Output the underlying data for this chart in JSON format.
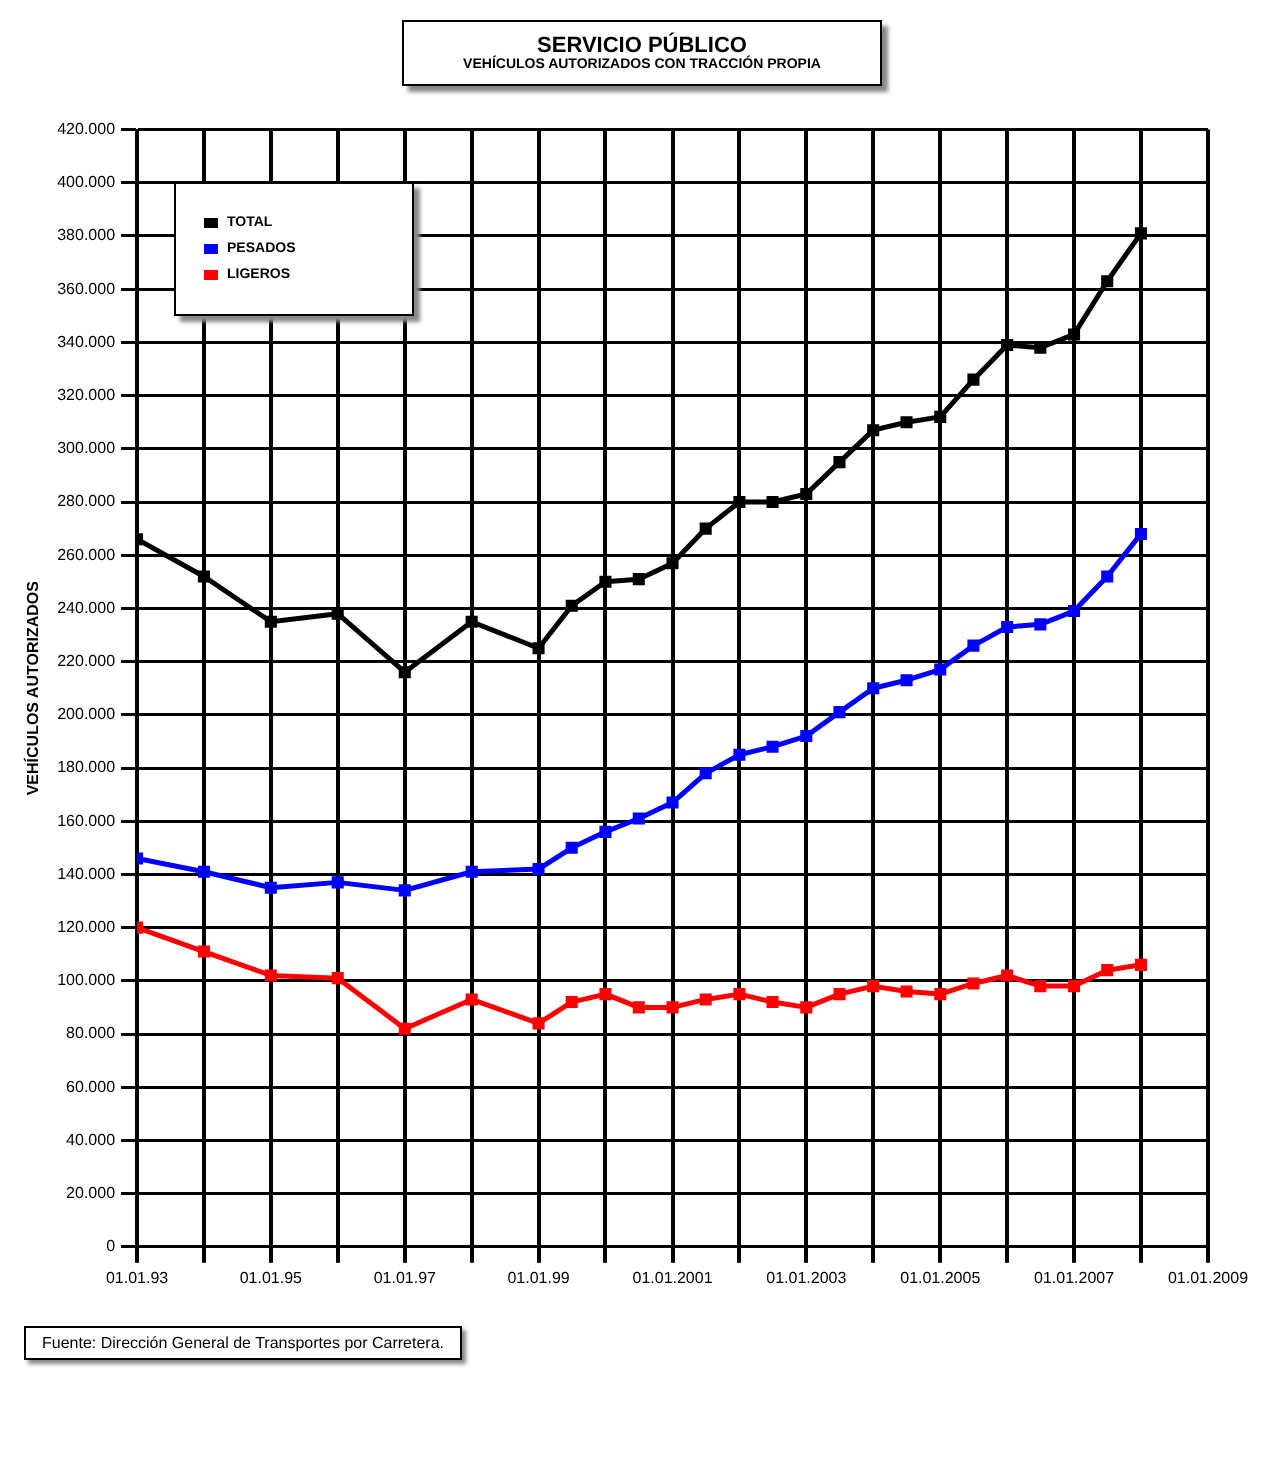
{
  "chart_data": {
    "type": "line",
    "title": "SERVICIO PÚBLICO",
    "subtitle": "VEHÍCULOS AUTORIZADOS CON TRACCIÓN PROPIA",
    "ylabel": "VEHÍCULOS AUTORIZADOS",
    "annotations": [
      "Fuente: Dirección General de Transportes por Carretera."
    ],
    "x": [
      "1993-01-01",
      "1994-01-01",
      "1995-01-01",
      "1996-01-01",
      "1997-01-01",
      "1998-01-01",
      "1999-01-01",
      "1999-07-01",
      "2000-01-01",
      "2000-07-01",
      "2001-01-01",
      "2001-07-01",
      "2002-01-01",
      "2002-07-01",
      "2003-01-01",
      "2003-07-01",
      "2004-01-01",
      "2004-07-01",
      "2005-01-01",
      "2005-07-01",
      "2006-01-01",
      "2006-07-01",
      "2007-01-01",
      "2007-07-01",
      "2008-01-01"
    ],
    "series": [
      {
        "name": "TOTAL",
        "color": "#000000",
        "values": [
          266000,
          252000,
          235000,
          238000,
          216000,
          235000,
          225000,
          241000,
          250000,
          251000,
          257000,
          270000,
          280000,
          280000,
          283000,
          295000,
          307000,
          310000,
          312000,
          326000,
          339000,
          338000,
          343000,
          363000,
          381000
        ]
      },
      {
        "name": "PESADOS",
        "color": "#0000ff",
        "values": [
          146000,
          141000,
          135000,
          137000,
          134000,
          141000,
          142000,
          150000,
          156000,
          161000,
          167000,
          178000,
          185000,
          188000,
          192000,
          201000,
          210000,
          213000,
          217000,
          226000,
          233000,
          234000,
          239000,
          252000,
          268000
        ]
      },
      {
        "name": "LIGEROS",
        "color": "#ff0000",
        "values": [
          120000,
          111000,
          102000,
          101000,
          82000,
          93000,
          84000,
          92000,
          95000,
          90000,
          90000,
          93000,
          95000,
          92000,
          90000,
          95000,
          98000,
          96000,
          95000,
          99000,
          102000,
          98000,
          98000,
          104000,
          106000
        ]
      }
    ],
    "xlim": [
      "1993-01-01",
      "2009-01-01"
    ],
    "xticks": [
      {
        "value": "1993-01-01",
        "label": "01.01.93"
      },
      {
        "value": "1994-01-01",
        "label": null
      },
      {
        "value": "1995-01-01",
        "label": "01.01.95"
      },
      {
        "value": "1996-01-01",
        "label": null
      },
      {
        "value": "1997-01-01",
        "label": "01.01.97"
      },
      {
        "value": "1998-01-01",
        "label": null
      },
      {
        "value": "1999-01-01",
        "label": "01.01.99"
      },
      {
        "value": "2000-01-01",
        "label": null
      },
      {
        "value": "2001-01-01",
        "label": "01.01.2001"
      },
      {
        "value": "2002-01-01",
        "label": null
      },
      {
        "value": "2003-01-01",
        "label": "01.01.2003"
      },
      {
        "value": "2004-01-01",
        "label": null
      },
      {
        "value": "2005-01-01",
        "label": "01.01.2005"
      },
      {
        "value": "2006-01-01",
        "label": null
      },
      {
        "value": "2007-01-01",
        "label": "01.01.2007"
      },
      {
        "value": "2008-01-01",
        "label": null
      },
      {
        "value": "2009-01-01",
        "label": "01.01.2009"
      }
    ],
    "ylim": [
      0,
      420000
    ],
    "yticks": [
      {
        "value": 0,
        "label": "0"
      },
      {
        "value": 20000,
        "label": "20.000"
      },
      {
        "value": 40000,
        "label": "40.000"
      },
      {
        "value": 60000,
        "label": "60.000"
      },
      {
        "value": 80000,
        "label": "80.000"
      },
      {
        "value": 100000,
        "label": "100.000"
      },
      {
        "value": 120000,
        "label": "120.000"
      },
      {
        "value": 140000,
        "label": "140.000"
      },
      {
        "value": 160000,
        "label": "160.000"
      },
      {
        "value": 180000,
        "label": "180.000"
      },
      {
        "value": 200000,
        "label": "200.000"
      },
      {
        "value": 220000,
        "label": "220.000"
      },
      {
        "value": 240000,
        "label": "240.000"
      },
      {
        "value": 260000,
        "label": "260.000"
      },
      {
        "value": 280000,
        "label": "280.000"
      },
      {
        "value": 300000,
        "label": "300.000"
      },
      {
        "value": 320000,
        "label": "320.000"
      },
      {
        "value": 340000,
        "label": "340.000"
      },
      {
        "value": 360000,
        "label": "360.000"
      },
      {
        "value": 380000,
        "label": "380.000"
      },
      {
        "value": 400000,
        "label": "400.000"
      },
      {
        "value": 420000,
        "label": "420.000"
      }
    ],
    "grid": true,
    "legend": "top left",
    "marker": "square",
    "line_style": "solid"
  }
}
